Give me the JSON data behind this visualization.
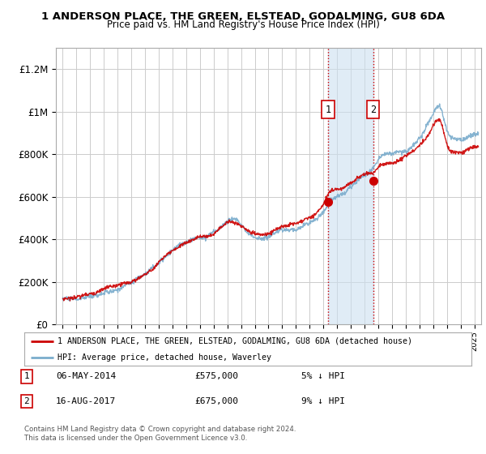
{
  "title": "1 ANDERSON PLACE, THE GREEN, ELSTEAD, GODALMING, GU8 6DA",
  "subtitle": "Price paid vs. HM Land Registry's House Price Index (HPI)",
  "ylabel_ticks": [
    "£0",
    "£200K",
    "£400K",
    "£600K",
    "£800K",
    "£1M",
    "£1.2M"
  ],
  "ytick_values": [
    0,
    200000,
    400000,
    600000,
    800000,
    1000000,
    1200000
  ],
  "ylim": [
    0,
    1300000
  ],
  "xlim_start": 1994.5,
  "xlim_end": 2025.5,
  "transaction1_date": 2014.35,
  "transaction1_price": 575000,
  "transaction1_label": "06-MAY-2014",
  "transaction1_pct": "5%",
  "transaction2_date": 2017.62,
  "transaction2_price": 675000,
  "transaction2_label": "16-AUG-2017",
  "transaction2_pct": "9%",
  "red_line_color": "#cc0000",
  "blue_line_color": "#7aaccc",
  "shade_color": "#cce0f0",
  "grid_color": "#cccccc",
  "background_color": "#ffffff",
  "legend_label_red": "1 ANDERSON PLACE, THE GREEN, ELSTEAD, GODALMING, GU8 6DA (detached house)",
  "legend_label_blue": "HPI: Average price, detached house, Waverley",
  "footnote": "Contains HM Land Registry data © Crown copyright and database right 2024.\nThis data is licensed under the Open Government Licence v3.0."
}
